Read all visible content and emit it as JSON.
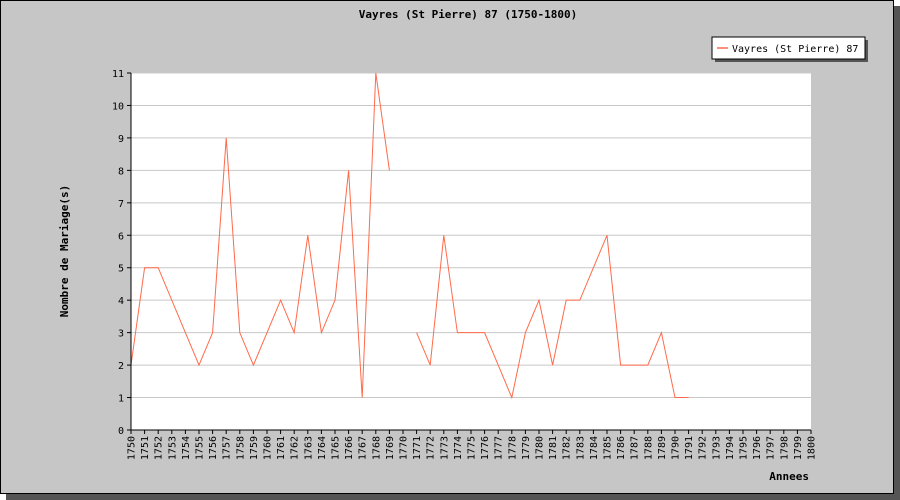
{
  "chart_data": {
    "type": "line",
    "title": "Vayres (St Pierre) 87 (1750-1800)",
    "xlabel": "Annees",
    "ylabel": "Nombre de Mariage(s)",
    "ylim": [
      0,
      11
    ],
    "yticks": [
      "0",
      "1",
      "2",
      "3",
      "4",
      "5",
      "6",
      "7",
      "8",
      "9",
      "10",
      "11"
    ],
    "grid": true,
    "legend_position": "top-right",
    "series_color": "#ff6a4a",
    "categories": [
      "1750",
      "1751",
      "1752",
      "1753",
      "1754",
      "1755",
      "1756",
      "1757",
      "1758",
      "1759",
      "1760",
      "1761",
      "1762",
      "1763",
      "1764",
      "1765",
      "1766",
      "1767",
      "1768",
      "1769",
      "1770",
      "1771",
      "1772",
      "1773",
      "1774",
      "1775",
      "1776",
      "1777",
      "1778",
      "1779",
      "1780",
      "1781",
      "1782",
      "1783",
      "1784",
      "1785",
      "1786",
      "1787",
      "1788",
      "1789",
      "1790",
      "1791",
      "1792",
      "1793",
      "1794",
      "1795",
      "1796",
      "1797",
      "1798",
      "1799",
      "1800"
    ],
    "series": [
      {
        "name": "Vayres (St Pierre) 87",
        "values": [
          2,
          5,
          5,
          4,
          3,
          2,
          3,
          9,
          3,
          2,
          3,
          4,
          3,
          6,
          3,
          4,
          8,
          1,
          11,
          8,
          null,
          3,
          2,
          6,
          3,
          3,
          3,
          2,
          1,
          3,
          4,
          2,
          4,
          4,
          5,
          6,
          2,
          2,
          2,
          3,
          1,
          1,
          null,
          null,
          null,
          null,
          null,
          null,
          null,
          null,
          null
        ]
      }
    ]
  }
}
